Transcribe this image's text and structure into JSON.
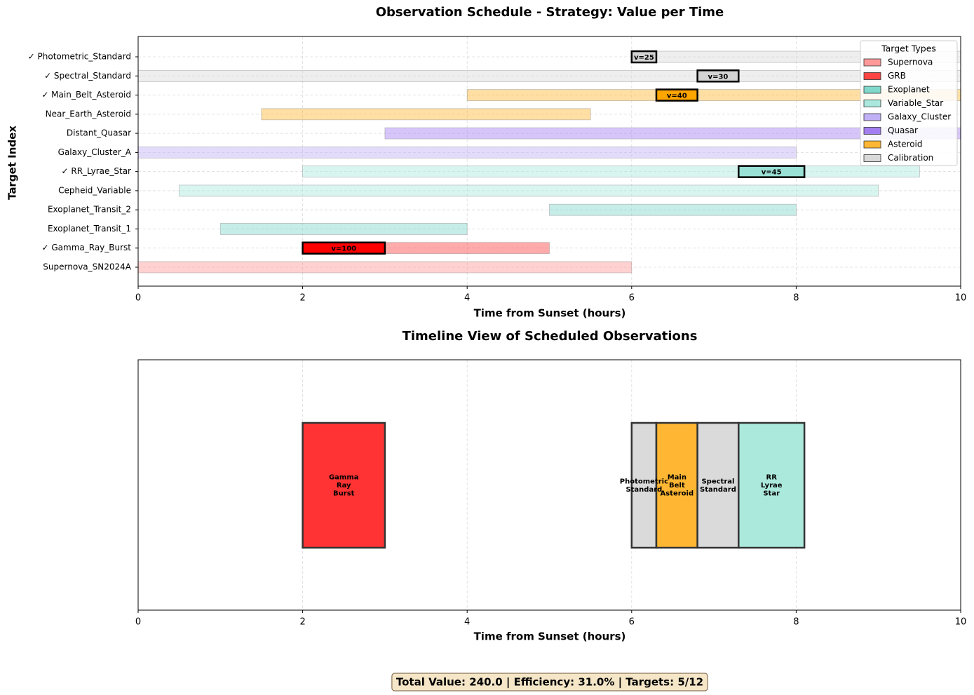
{
  "chart_data": [
    {
      "type": "gantt",
      "title": "Observation Schedule - Strategy: Value per Time",
      "xlabel": "Time from Sunset (hours)",
      "ylabel": "Target Index",
      "categories": [
        "Supernova_SN2024A",
        "✓ Gamma_Ray_Burst",
        "Exoplanet_Transit_1",
        "Exoplanet_Transit_2",
        "Cepheid_Variable",
        "✓ RR_Lyrae_Star",
        "Galaxy_Cluster_A",
        "Distant_Quasar",
        "Near_Earth_Asteroid",
        "✓ Main_Belt_Asteroid",
        "✓ Spectral_Standard",
        "✓ Photometric_Standard"
      ],
      "types": [
        "Supernova",
        "GRB",
        "Exoplanet",
        "Exoplanet",
        "Variable_Star",
        "Variable_Star",
        "Galaxy_Cluster",
        "Quasar",
        "Asteroid",
        "Asteroid",
        "Calibration",
        "Calibration"
      ],
      "window_starts": [
        0,
        2,
        1,
        5,
        0.5,
        2,
        0,
        3,
        1.5,
        4,
        0,
        6
      ],
      "window_ends": [
        6,
        5,
        4,
        8,
        9,
        9.5,
        8,
        10,
        5.5,
        10,
        10,
        10
      ],
      "scheduled": {
        "rows": [
          1,
          5,
          9,
          10,
          11
        ],
        "starts": [
          2,
          7.3,
          6.3,
          6.8,
          6.0
        ],
        "ends": [
          3,
          8.1,
          6.8,
          7.3,
          6.3
        ],
        "values": [
          100,
          45,
          40,
          30,
          25
        ],
        "value_labels": [
          "v=100",
          "v=45",
          "v=40",
          "v=30",
          "v=25"
        ],
        "colors": [
          "#ff0000",
          "#99e0d5",
          "#ffa500",
          "#d3d3d3",
          "#d3d3d3"
        ]
      },
      "xlim": [
        0,
        10
      ],
      "xticks": [
        0,
        2,
        4,
        6,
        8,
        10
      ],
      "grid": true,
      "legend": {
        "title": "Target Types",
        "corner": "upper right",
        "items": [
          {
            "name": "Supernova",
            "color": "#ff9999"
          },
          {
            "name": "GRB",
            "color": "#ff4444"
          },
          {
            "name": "Exoplanet",
            "color": "#80d8cc"
          },
          {
            "name": "Variable_Star",
            "color": "#aae8dd"
          },
          {
            "name": "Galaxy_Cluster",
            "color": "#c0b0f5"
          },
          {
            "name": "Quasar",
            "color": "#a37ef0"
          },
          {
            "name": "Asteroid",
            "color": "#ffb733"
          },
          {
            "name": "Calibration",
            "color": "#d9d9d9"
          }
        ]
      }
    },
    {
      "type": "timeline",
      "title": "Timeline View of Scheduled Observations",
      "xlabel": "Time from Sunset (hours)",
      "starts": [
        2,
        6.0,
        6.3,
        6.8,
        7.3
      ],
      "ends": [
        3,
        6.3,
        6.8,
        7.3,
        8.1
      ],
      "labels": [
        "Gamma\nRay\nBurst",
        "Photometric\nStandard",
        "Main\nBelt\nAsteroid",
        "Spectral\nStandard",
        "RR\nLyrae\nStar"
      ],
      "colors": [
        "#ff3333",
        "#dadada",
        "#ffb733",
        "#dadada",
        "#ace9dd"
      ],
      "xlim": [
        0,
        10
      ],
      "xticks": [
        0,
        2,
        4,
        6,
        8,
        10
      ],
      "grid": true
    }
  ],
  "footer": "Total Value: 240.0 | Efficiency: 31.0% | Targets: 5/12"
}
